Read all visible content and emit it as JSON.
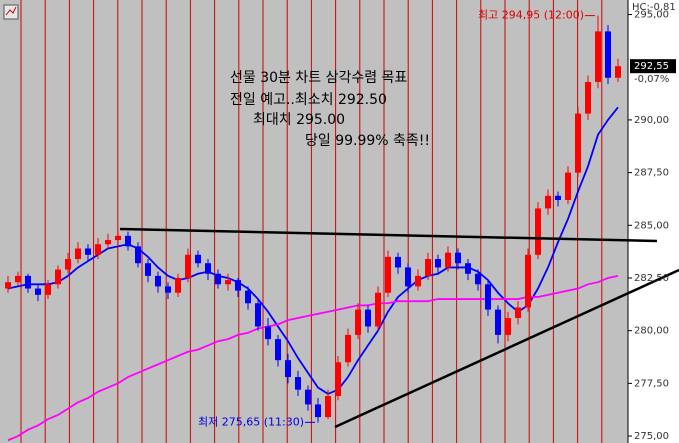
{
  "chart_data": {
    "type": "candlestick",
    "hc_label": "HC:-0,81",
    "change_label": "-0,07%",
    "high_label": "최고 294,95 (12:00)",
    "low_label": "최저 275,65 (11:30)",
    "annotations": [
      "선물 30분 차트 삼각수렴 목표",
      "전일 예고..최소치 292.50",
      "최대치 295.00",
      "당일 99.99% 축족!!"
    ],
    "current_price": {
      "value": 292.55,
      "label": "292,55"
    },
    "ylim": [
      274.67,
      295.69
    ],
    "yticks": [
      {
        "value": 275,
        "label": "275,00"
      },
      {
        "value": 277.5,
        "label": "277,50"
      },
      {
        "value": 280,
        "label": "280,00"
      },
      {
        "value": 282.5,
        "label": "282,50"
      },
      {
        "value": 285,
        "label": "285,00"
      },
      {
        "value": 287.5,
        "label": "287,50"
      },
      {
        "value": 290,
        "label": "290,00"
      },
      {
        "value": 295,
        "label": "295,00"
      }
    ],
    "up_color": "#ff0000",
    "down_color": "#0000ff",
    "candles": [
      [
        282.0,
        282.6,
        281.8,
        282.3
      ],
      [
        282.3,
        282.8,
        282.1,
        282.6
      ],
      [
        282.6,
        282.7,
        281.8,
        282.0
      ],
      [
        282.0,
        282.2,
        281.4,
        281.7
      ],
      [
        281.7,
        282.4,
        281.5,
        282.2
      ],
      [
        282.2,
        283.1,
        282.0,
        282.9
      ],
      [
        282.9,
        283.7,
        282.7,
        283.4
      ],
      [
        283.4,
        284.2,
        283.2,
        283.9
      ],
      [
        283.9,
        284.1,
        283.3,
        283.6
      ],
      [
        283.6,
        284.4,
        283.4,
        284.1
      ],
      [
        284.1,
        284.6,
        283.9,
        284.3
      ],
      [
        284.3,
        284.8,
        284.0,
        284.5
      ],
      [
        284.5,
        284.7,
        283.8,
        284.0
      ],
      [
        284.0,
        284.2,
        283.0,
        283.2
      ],
      [
        283.2,
        283.4,
        282.3,
        282.6
      ],
      [
        282.6,
        282.8,
        281.8,
        282.1
      ],
      [
        282.1,
        282.3,
        281.5,
        281.8
      ],
      [
        281.8,
        282.7,
        281.6,
        282.5
      ],
      [
        282.5,
        283.9,
        282.3,
        283.6
      ],
      [
        283.6,
        283.8,
        283.0,
        283.2
      ],
      [
        283.2,
        283.4,
        282.4,
        282.7
      ],
      [
        282.7,
        282.9,
        282.0,
        282.2
      ],
      [
        282.2,
        282.7,
        281.9,
        282.4
      ],
      [
        282.4,
        282.5,
        281.6,
        281.9
      ],
      [
        281.9,
        282.1,
        281.0,
        281.3
      ],
      [
        281.3,
        281.5,
        280.0,
        280.2
      ],
      [
        280.2,
        280.6,
        279.3,
        279.6
      ],
      [
        279.6,
        279.8,
        278.3,
        278.6
      ],
      [
        278.6,
        278.9,
        277.5,
        277.8
      ],
      [
        277.8,
        278.1,
        276.9,
        277.2
      ],
      [
        277.2,
        277.4,
        276.2,
        276.5
      ],
      [
        276.5,
        276.8,
        275.65,
        275.9
      ],
      [
        275.9,
        277.2,
        275.8,
        276.9
      ],
      [
        276.9,
        278.8,
        276.7,
        278.5
      ],
      [
        278.5,
        280.1,
        278.3,
        279.8
      ],
      [
        279.8,
        281.3,
        279.6,
        281.0
      ],
      [
        281.0,
        281.2,
        279.9,
        280.2
      ],
      [
        280.2,
        282.1,
        280.0,
        281.8
      ],
      [
        281.8,
        283.8,
        281.6,
        283.5
      ],
      [
        283.5,
        283.7,
        282.7,
        283.0
      ],
      [
        283.0,
        283.2,
        281.8,
        282.1
      ],
      [
        282.1,
        282.9,
        281.9,
        282.6
      ],
      [
        282.6,
        283.7,
        282.4,
        283.4
      ],
      [
        283.4,
        283.6,
        282.7,
        283.0
      ],
      [
        283.0,
        284.0,
        282.8,
        283.7
      ],
      [
        283.7,
        283.9,
        282.9,
        283.2
      ],
      [
        283.2,
        283.4,
        282.4,
        282.7
      ],
      [
        282.7,
        282.9,
        281.9,
        282.2
      ],
      [
        282.2,
        282.4,
        280.7,
        281.0
      ],
      [
        281.0,
        281.2,
        279.4,
        279.8
      ],
      [
        279.8,
        280.9,
        279.5,
        280.6
      ],
      [
        280.6,
        281.4,
        280.3,
        281.1
      ],
      [
        281.1,
        283.9,
        280.9,
        283.6
      ],
      [
        283.6,
        286.1,
        283.4,
        285.8
      ],
      [
        285.8,
        286.7,
        285.5,
        286.4
      ],
      [
        286.4,
        286.6,
        285.9,
        286.2
      ],
      [
        286.2,
        287.8,
        286.0,
        287.5
      ],
      [
        287.5,
        290.6,
        287.3,
        290.3
      ],
      [
        290.3,
        292.1,
        290.0,
        291.8
      ],
      [
        291.8,
        294.95,
        291.5,
        294.2
      ],
      [
        294.2,
        294.5,
        291.7,
        292.0
      ],
      [
        292.0,
        292.9,
        291.8,
        292.55
      ]
    ],
    "moving_averages": [
      {
        "color": "#0000ff",
        "values": [
          282.0,
          282.1,
          282.2,
          282.2,
          282.2,
          282.3,
          282.6,
          283.0,
          283.3,
          283.6,
          283.9,
          284.0,
          284.1,
          283.9,
          283.5,
          283.0,
          282.6,
          282.4,
          282.5,
          282.7,
          282.8,
          282.6,
          282.5,
          282.3,
          282.0,
          281.5,
          280.9,
          280.2,
          279.5,
          278.7,
          278.0,
          277.3,
          277.0,
          277.2,
          277.8,
          278.6,
          279.3,
          280.0,
          280.9,
          281.6,
          282.0,
          282.4,
          282.6,
          282.7,
          283.0,
          283.0,
          283.0,
          282.8,
          282.4,
          281.8,
          281.3,
          280.9,
          281.2,
          282.0,
          283.0,
          284.2,
          285.3,
          286.6,
          287.8,
          289.3,
          290.0,
          290.6
        ]
      },
      {
        "color": "#ff00ff",
        "values": [
          274.8,
          275.0,
          275.3,
          275.5,
          275.8,
          276.0,
          276.3,
          276.6,
          276.8,
          277.1,
          277.3,
          277.5,
          277.8,
          278.0,
          278.2,
          278.4,
          278.6,
          278.8,
          279.0,
          279.1,
          279.3,
          279.5,
          279.6,
          279.8,
          279.9,
          280.1,
          280.2,
          280.3,
          280.5,
          280.6,
          280.7,
          280.8,
          280.9,
          281.0,
          281.1,
          281.2,
          281.2,
          281.3,
          281.3,
          281.4,
          281.4,
          281.4,
          281.4,
          281.5,
          281.5,
          281.5,
          281.5,
          281.5,
          281.5,
          281.5,
          281.5,
          281.5,
          281.6,
          281.6,
          281.7,
          281.8,
          281.9,
          282.0,
          282.2,
          282.3,
          282.5,
          282.6
        ]
      }
    ]
  }
}
